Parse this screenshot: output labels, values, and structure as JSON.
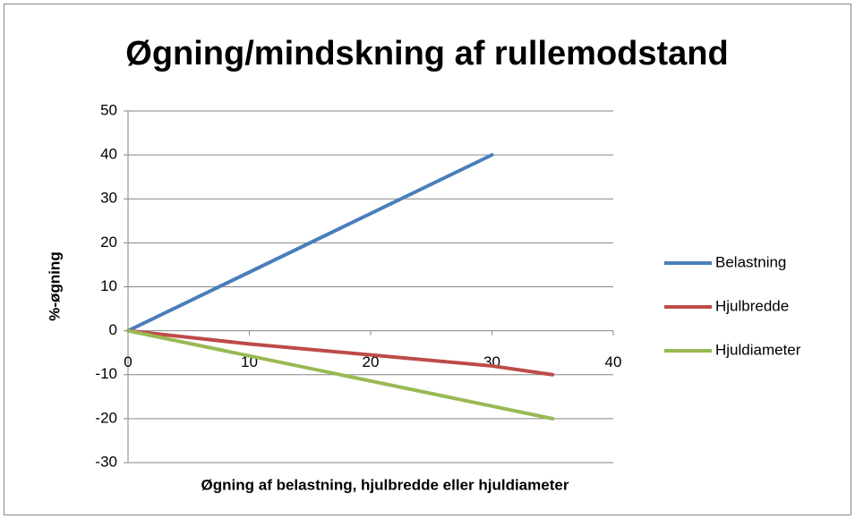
{
  "chart_data": {
    "type": "line",
    "title": "Øgning/mindskning af rullemodstand",
    "x_label": "Øgning af belastning, hjulbredde eller hjuldiameter",
    "y_label": "%-øgning",
    "series": [
      {
        "name": "Belastning",
        "color": "#4a7ebb",
        "x": [
          0,
          30
        ],
        "values": [
          0,
          40
        ]
      },
      {
        "name": "Hjulbredde",
        "color": "#be4b48",
        "x": [
          0,
          10,
          20,
          30,
          35
        ],
        "values": [
          0,
          -3,
          -5.5,
          -8,
          -10
        ]
      },
      {
        "name": "Hjuldiameter",
        "color": "#98b954",
        "x": [
          0,
          35
        ],
        "values": [
          0,
          -20
        ]
      }
    ],
    "xlim": [
      0,
      40
    ],
    "xticks": [
      0,
      10,
      20,
      30,
      40
    ],
    "ylim": [
      -30,
      50
    ],
    "yticks": [
      -30,
      -20,
      -10,
      0,
      10,
      20,
      30,
      40,
      50
    ],
    "grid": true,
    "legend": "right"
  }
}
